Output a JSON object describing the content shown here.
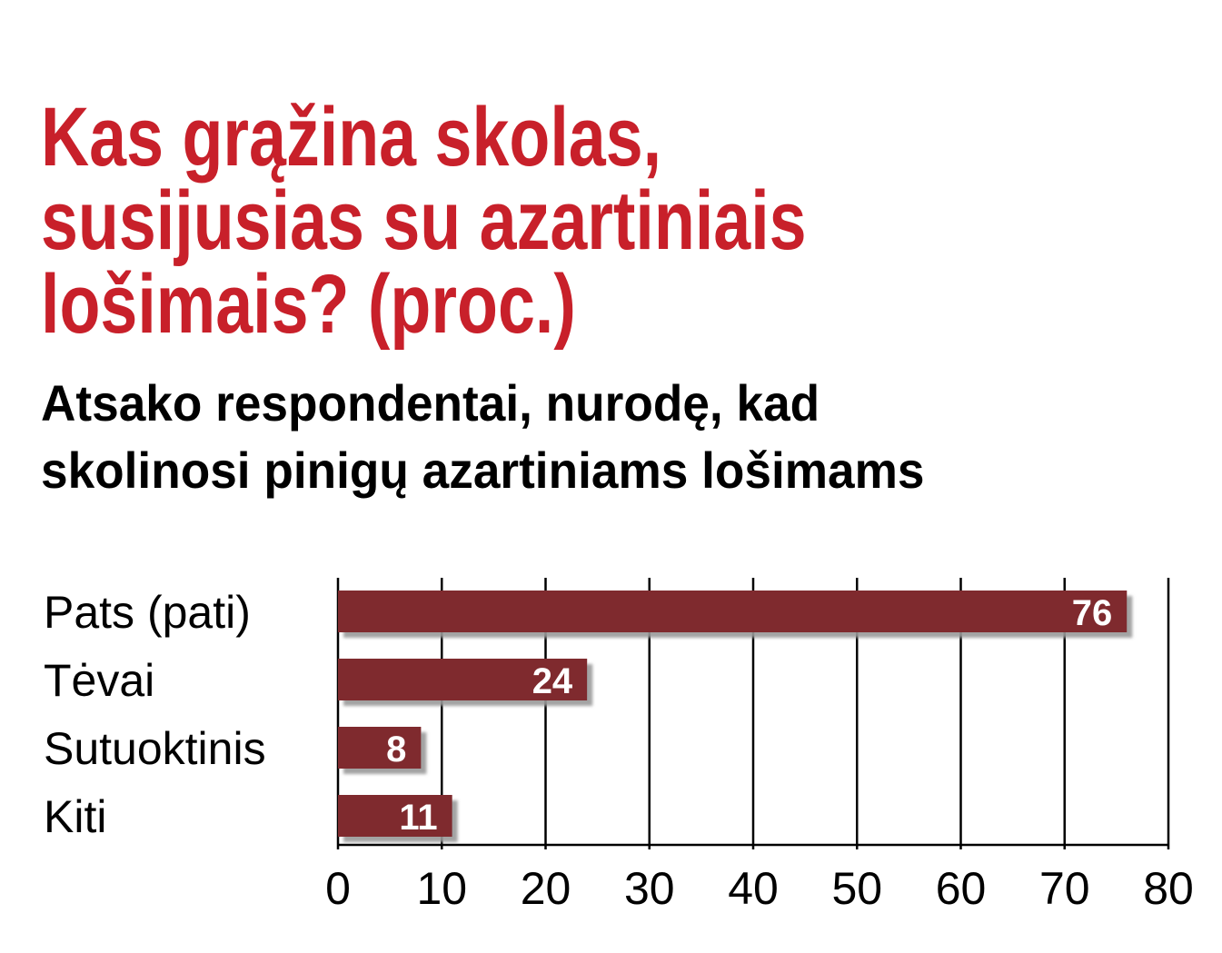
{
  "chart_data": {
    "type": "hbar",
    "title": [
      "Kas grąžina skolas,",
      "susijusias su azartiniais",
      "lošimais? (proc.)"
    ],
    "subtitle": [
      "Atsako respondentai, nurodę, kad",
      "skolinosi pinigų azartiniams lošimams"
    ],
    "categories": [
      "Pats (pati)",
      "Tėvai",
      "Sutuoktinis",
      "Kiti"
    ],
    "values": [
      76,
      24,
      8,
      11
    ],
    "color": "#7f2a2d",
    "title_color": "#c8202a",
    "xlim": [
      0,
      80
    ],
    "xticks": [
      0,
      10,
      20,
      30,
      40,
      50,
      60,
      70,
      80
    ],
    "grid": true
  }
}
